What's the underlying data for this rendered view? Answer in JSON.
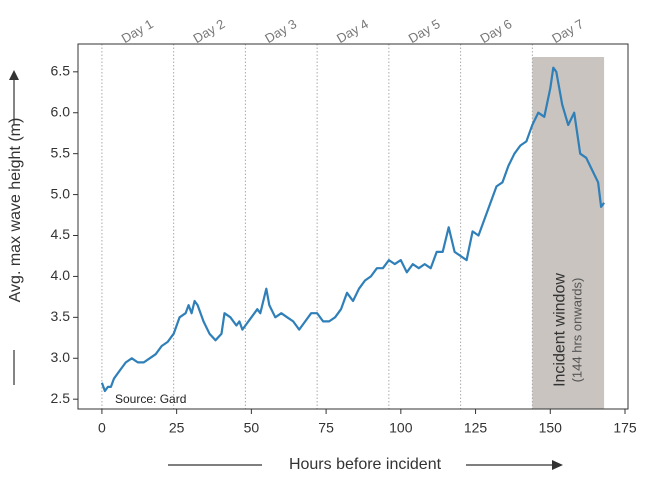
{
  "chart_data": {
    "type": "line",
    "ylabel": "Avg. max wave height (m)",
    "xlabel": "Hours before incident",
    "source": "Source: Gard",
    "x": [
      0,
      1,
      2,
      3,
      4,
      6,
      8,
      10,
      12,
      14,
      16,
      18,
      20,
      22,
      24,
      26,
      28,
      29,
      30,
      31,
      32,
      34,
      36,
      38,
      40,
      41,
      43,
      45,
      46,
      47,
      48,
      50,
      52,
      53,
      55,
      56,
      58,
      60,
      62,
      64,
      66,
      68,
      70,
      72,
      74,
      76,
      78,
      80,
      82,
      84,
      86,
      88,
      90,
      92,
      94,
      96,
      98,
      100,
      102,
      104,
      106,
      108,
      110,
      112,
      114,
      116,
      118,
      120,
      122,
      124,
      126,
      128,
      130,
      132,
      134,
      136,
      138,
      140,
      142,
      144,
      146,
      148,
      150,
      151,
      152,
      154,
      156,
      158,
      160,
      162,
      164,
      166,
      167,
      168
    ],
    "values": [
      2.7,
      2.6,
      2.65,
      2.65,
      2.75,
      2.85,
      2.95,
      3.0,
      2.95,
      2.95,
      3.0,
      3.05,
      3.15,
      3.2,
      3.3,
      3.5,
      3.55,
      3.65,
      3.55,
      3.7,
      3.65,
      3.45,
      3.3,
      3.22,
      3.3,
      3.55,
      3.5,
      3.4,
      3.45,
      3.35,
      3.4,
      3.5,
      3.6,
      3.55,
      3.85,
      3.65,
      3.5,
      3.55,
      3.5,
      3.45,
      3.35,
      3.45,
      3.55,
      3.55,
      3.45,
      3.45,
      3.5,
      3.6,
      3.8,
      3.7,
      3.85,
      3.95,
      4.0,
      4.1,
      4.1,
      4.2,
      4.15,
      4.2,
      4.05,
      4.15,
      4.1,
      4.15,
      4.1,
      4.3,
      4.3,
      4.6,
      4.3,
      4.25,
      4.2,
      4.55,
      4.5,
      4.7,
      4.9,
      5.1,
      5.15,
      5.35,
      5.5,
      5.6,
      5.65,
      5.85,
      6.0,
      5.95,
      6.3,
      6.55,
      6.5,
      6.1,
      5.85,
      6.0,
      5.5,
      5.45,
      5.3,
      5.15,
      4.85,
      4.9
    ],
    "color": "#2f7fb8",
    "xlim": [
      -8,
      176
    ],
    "ylim": [
      2.38,
      6.84
    ],
    "xticks": [
      0,
      25,
      50,
      75,
      100,
      125,
      150,
      175
    ],
    "yticks": [
      2.5,
      {
        "value": 3,
        "label": "3.0"
      },
      3.5,
      {
        "value": 4,
        "label": "4.0"
      },
      4.5,
      {
        "value": 5,
        "label": "5.0"
      },
      5.5,
      {
        "value": 6,
        "label": "6.0"
      },
      6.5
    ],
    "day_boundaries": [
      0,
      24,
      48,
      72,
      96,
      120,
      144
    ],
    "day_labels": [
      {
        "label": "Day 1",
        "x": 12
      },
      {
        "label": "Day 2",
        "x": 36
      },
      {
        "label": "Day 3",
        "x": 60
      },
      {
        "label": "Day 4",
        "x": 84
      },
      {
        "label": "Day 5",
        "x": 108
      },
      {
        "label": "Day 6",
        "x": 132
      },
      {
        "label": "Day 7",
        "x": 156
      }
    ],
    "shaded_region": {
      "range": [
        144,
        168
      ],
      "color": "#c9c4bf",
      "label": "Incident window",
      "sublabel": "(144 hrs onwards)"
    }
  }
}
